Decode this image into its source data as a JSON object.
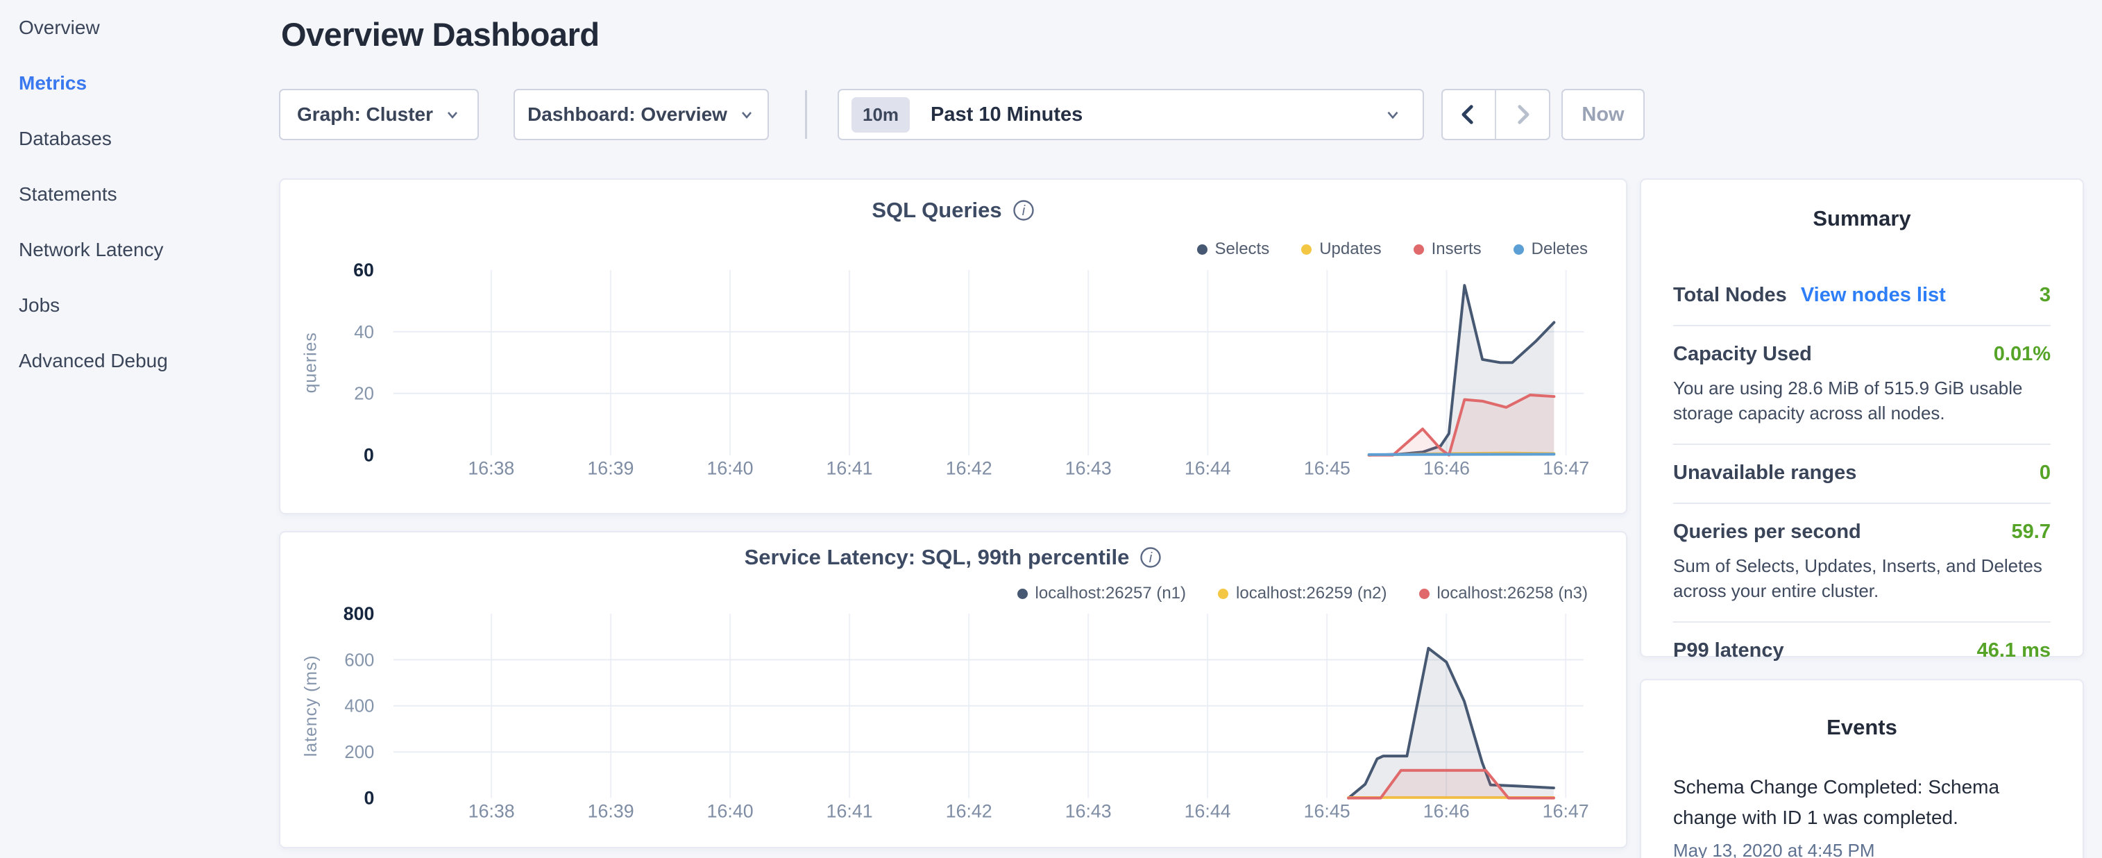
{
  "sidebar": {
    "items": [
      {
        "label": "Overview",
        "active": false
      },
      {
        "label": "Metrics",
        "active": true
      },
      {
        "label": "Databases",
        "active": false
      },
      {
        "label": "Statements",
        "active": false
      },
      {
        "label": "Network Latency",
        "active": false
      },
      {
        "label": "Jobs",
        "active": false
      },
      {
        "label": "Advanced Debug",
        "active": false
      }
    ]
  },
  "header": {
    "title": "Overview Dashboard"
  },
  "toolbar": {
    "graph_dropdown": {
      "text": "Graph: Cluster"
    },
    "dashboard_dropdown": {
      "text": "Dashboard: Overview"
    },
    "time_picker": {
      "badge": "10m",
      "label": "Past 10 Minutes"
    },
    "now_button": "Now"
  },
  "colors": {
    "accent_blue": "#3a78ef",
    "link_blue": "#2d7ef7",
    "value_green": "#55a327",
    "series_navy": "#475872",
    "series_yellow": "#f3c644",
    "series_red": "#e0696b",
    "series_blue": "#5b9fd4"
  },
  "chart_data": [
    {
      "type": "area",
      "title": "SQL Queries",
      "ylabel": "queries",
      "xlabel": "",
      "grid": true,
      "legend_position": "top-right",
      "x_ticks": [
        "16:38",
        "16:39",
        "16:40",
        "16:41",
        "16:42",
        "16:43",
        "16:44",
        "16:45",
        "16:46",
        "16:47"
      ],
      "x_tick_values": [
        38,
        39,
        40,
        41,
        42,
        43,
        44,
        45,
        46,
        47
      ],
      "x_domain": [
        37.18,
        47.15
      ],
      "y_domain": [
        0,
        60
      ],
      "y_ticks": [
        0,
        20,
        40,
        60
      ],
      "y_gridlines": [
        20,
        40
      ],
      "series": [
        {
          "name": "Selects",
          "color": "#475872",
          "points": [
            [
              45.35,
              0
            ],
            [
              45.6,
              0.3
            ],
            [
              45.8,
              1
            ],
            [
              45.95,
              3
            ],
            [
              46.02,
              7
            ],
            [
              46.15,
              55
            ],
            [
              46.3,
              31
            ],
            [
              46.45,
              30
            ],
            [
              46.55,
              30
            ],
            [
              46.75,
              37
            ],
            [
              46.9,
              43
            ]
          ]
        },
        {
          "name": "Updates",
          "color": "#f3c644",
          "points": [
            [
              45.35,
              0
            ],
            [
              46.0,
              0.5
            ],
            [
              46.5,
              0.7
            ],
            [
              46.9,
              0.5
            ]
          ]
        },
        {
          "name": "Inserts",
          "color": "#e0696b",
          "points": [
            [
              45.35,
              0
            ],
            [
              45.55,
              0
            ],
            [
              45.8,
              8.5
            ],
            [
              45.95,
              2
            ],
            [
              46.02,
              0
            ],
            [
              46.15,
              18
            ],
            [
              46.3,
              17.5
            ],
            [
              46.5,
              15.5
            ],
            [
              46.7,
              19.5
            ],
            [
              46.9,
              19
            ]
          ]
        },
        {
          "name": "Deletes",
          "color": "#5b9fd4",
          "points": [
            [
              45.35,
              0.2
            ],
            [
              46.9,
              0.3
            ]
          ]
        }
      ]
    },
    {
      "type": "area",
      "title": "Service Latency: SQL, 99th percentile",
      "ylabel": "latency (ms)",
      "xlabel": "",
      "grid": true,
      "legend_position": "top-right",
      "x_ticks": [
        "16:38",
        "16:39",
        "16:40",
        "16:41",
        "16:42",
        "16:43",
        "16:44",
        "16:45",
        "16:46",
        "16:47"
      ],
      "x_tick_values": [
        38,
        39,
        40,
        41,
        42,
        43,
        44,
        45,
        46,
        47
      ],
      "x_domain": [
        37.18,
        47.15
      ],
      "y_domain": [
        0,
        800
      ],
      "y_ticks": [
        0,
        200,
        400,
        600,
        800
      ],
      "y_gridlines": [
        200,
        400,
        600
      ],
      "series": [
        {
          "name": "localhost:26257 (n1)",
          "color": "#475872",
          "points": [
            [
              45.18,
              0
            ],
            [
              45.32,
              60
            ],
            [
              45.42,
              170
            ],
            [
              45.47,
              182
            ],
            [
              45.67,
              182
            ],
            [
              45.85,
              650
            ],
            [
              46.0,
              590
            ],
            [
              46.15,
              420
            ],
            [
              46.3,
              155
            ],
            [
              46.37,
              57
            ],
            [
              46.6,
              52
            ],
            [
              46.9,
              44
            ]
          ]
        },
        {
          "name": "localhost:26259 (n2)",
          "color": "#f3c644",
          "points": [
            [
              45.18,
              2
            ],
            [
              46.9,
              2
            ]
          ]
        },
        {
          "name": "localhost:26258 (n3)",
          "color": "#e0696b",
          "points": [
            [
              45.18,
              0
            ],
            [
              45.45,
              0
            ],
            [
              45.62,
              120
            ],
            [
              46.33,
              120
            ],
            [
              46.52,
              0
            ],
            [
              46.9,
              0
            ]
          ]
        }
      ]
    }
  ],
  "summary": {
    "title": "Summary",
    "rows": [
      {
        "label": "Total Nodes",
        "link": "View nodes list",
        "value": "3"
      },
      {
        "label": "Capacity Used",
        "value": "0.01%",
        "description": "You are using 28.6 MiB of 515.9 GiB usable storage capacity across all nodes."
      },
      {
        "label": "Unavailable ranges",
        "value": "0"
      },
      {
        "label": "Queries per second",
        "value": "59.7",
        "description": "Sum of Selects, Updates, Inserts, and Deletes across your entire cluster."
      },
      {
        "label": "P99 latency",
        "value": "46.1 ms"
      }
    ]
  },
  "events": {
    "title": "Events",
    "items": [
      {
        "message": "Schema Change Completed: Schema change with ID 1 was completed.",
        "timestamp": "May 13, 2020 at 4:45 PM"
      }
    ]
  }
}
